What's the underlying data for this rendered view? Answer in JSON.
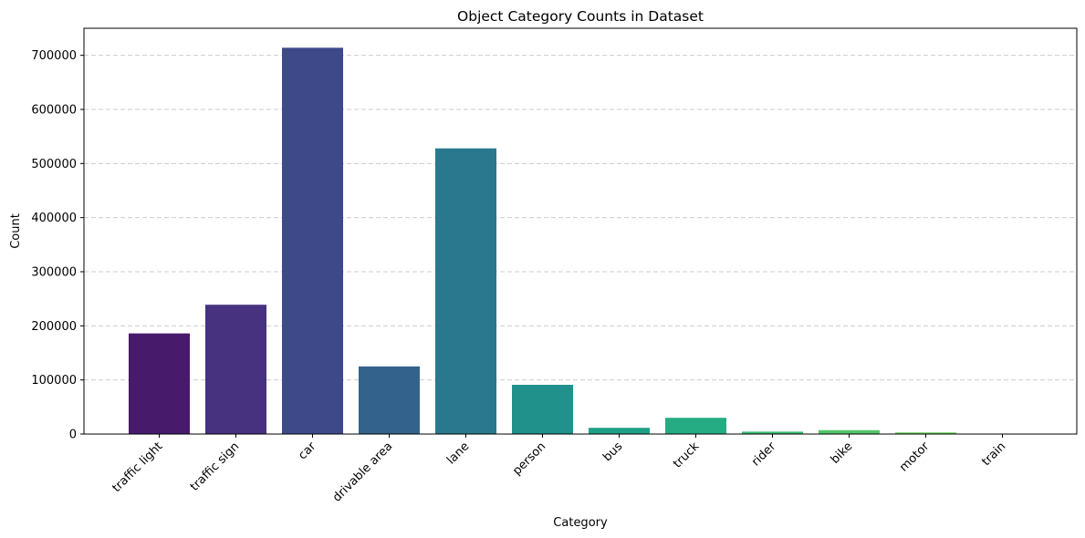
{
  "chart_data": {
    "type": "bar",
    "title": "Object Category Counts in Dataset",
    "xlabel": "Category",
    "ylabel": "Count",
    "categories": [
      "traffic light",
      "traffic sign",
      "car",
      "drivable area",
      "lane",
      "person",
      "bus",
      "truck",
      "rider",
      "bike",
      "motor",
      "train"
    ],
    "values": [
      186000,
      239000,
      714000,
      125000,
      528000,
      91000,
      11500,
      30000,
      4500,
      7200,
      3000,
      140
    ],
    "colors": [
      "#481a6c",
      "#46327e",
      "#3e4989",
      "#33638d",
      "#2a788e",
      "#21918c",
      "#1fa088",
      "#25ac82",
      "#3bbb75",
      "#52c569",
      "#6ccd5a",
      "#89d548"
    ],
    "ylim": [
      0,
      750000
    ],
    "yticks": [
      0,
      100000,
      200000,
      300000,
      400000,
      500000,
      600000,
      700000
    ],
    "ytick_labels": [
      "0",
      "100000",
      "200000",
      "300000",
      "400000",
      "500000",
      "600000",
      "700000"
    ],
    "grid": "y-dashed",
    "legend": "none"
  }
}
